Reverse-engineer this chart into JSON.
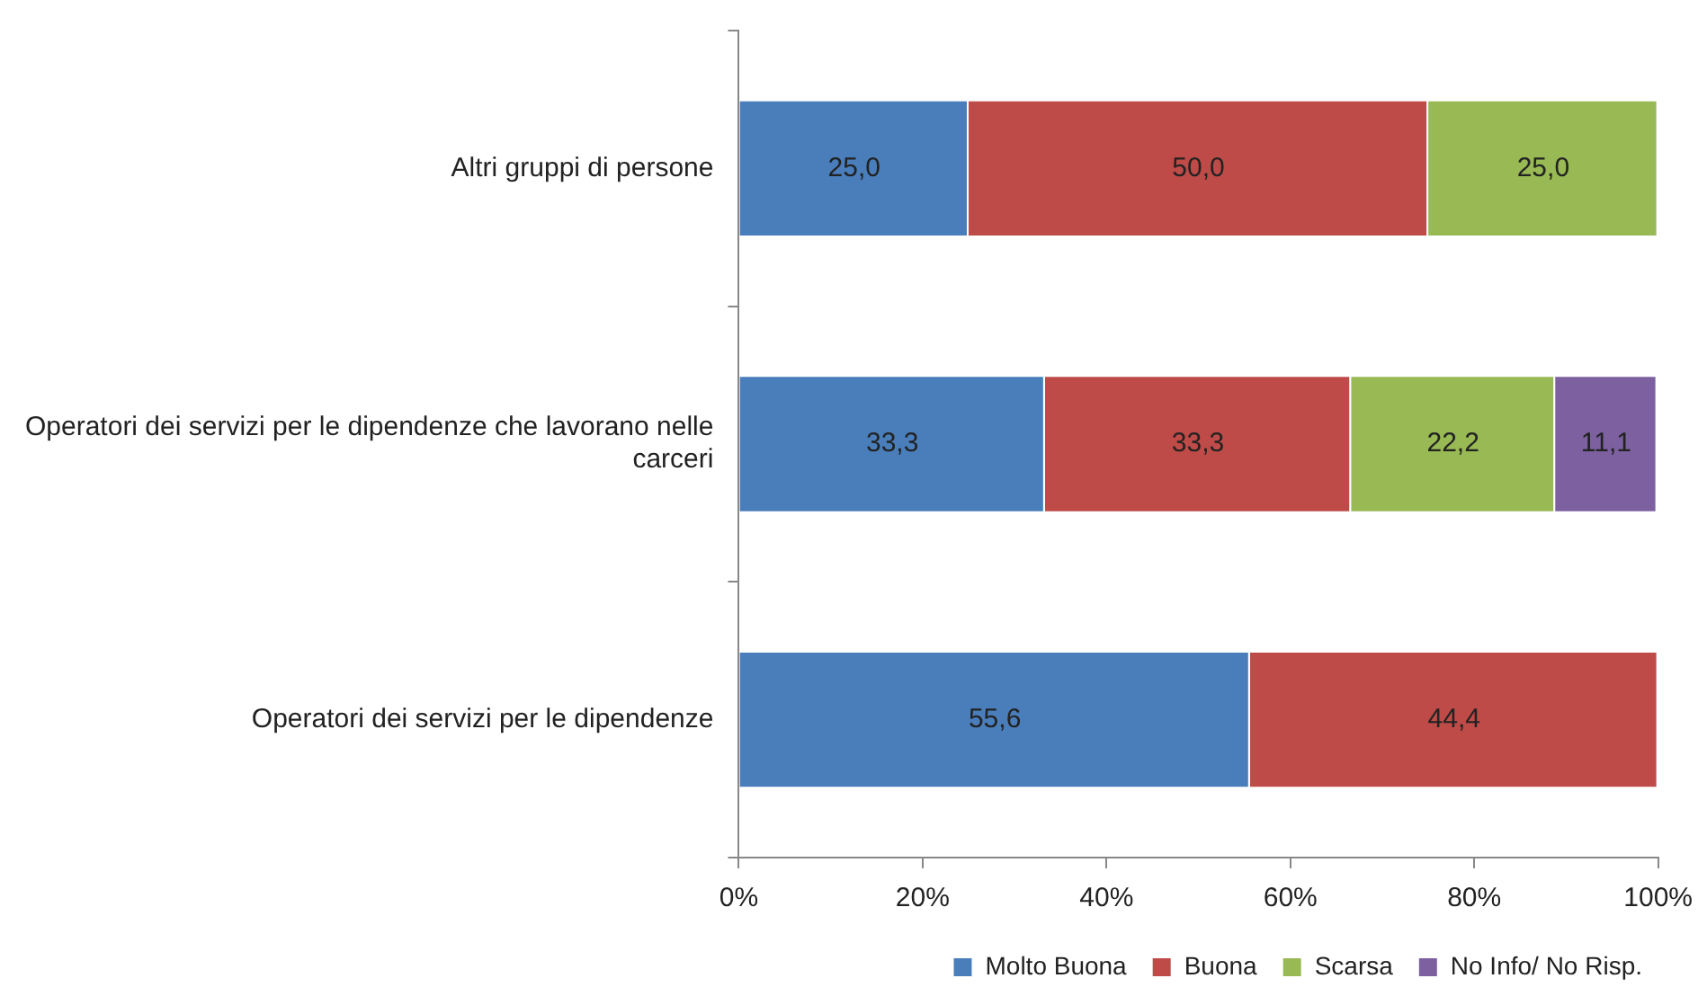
{
  "chart_data": {
    "type": "bar",
    "orientation": "horizontal",
    "stacked": true,
    "categories": [
      "Altri gruppi di persone",
      "Operatori dei servizi per le dipendenze che lavorano nelle carceri",
      "Operatori dei servizi per le dipendenze"
    ],
    "series": [
      {
        "name": "Molto Buona",
        "color": "#4a7ebb",
        "values": [
          25.0,
          33.3,
          55.6
        ],
        "value_labels": [
          "25,0",
          "33,3",
          "55,6"
        ]
      },
      {
        "name": "Buona",
        "color": "#be4b48",
        "values": [
          50.0,
          33.3,
          44.4
        ],
        "value_labels": [
          "50,0",
          "33,3",
          "44,4"
        ]
      },
      {
        "name": "Scarsa",
        "color": "#98b954",
        "values": [
          25.0,
          22.2,
          null
        ],
        "value_labels": [
          "25,0",
          "22,2",
          null
        ]
      },
      {
        "name": "No Info/ No Risp.",
        "color": "#7d60a0",
        "values": [
          null,
          11.1,
          null
        ],
        "value_labels": [
          null,
          "11,1",
          null
        ]
      }
    ],
    "xlim": [
      0,
      100
    ],
    "xticks": [
      {
        "value": 0,
        "label": "0%"
      },
      {
        "value": 20,
        "label": "20%"
      },
      {
        "value": 40,
        "label": "40%"
      },
      {
        "value": 60,
        "label": "60%"
      },
      {
        "value": 80,
        "label": "80%"
      },
      {
        "value": 100,
        "label": "100%"
      }
    ],
    "grid": false,
    "legend": "bottom right"
  }
}
